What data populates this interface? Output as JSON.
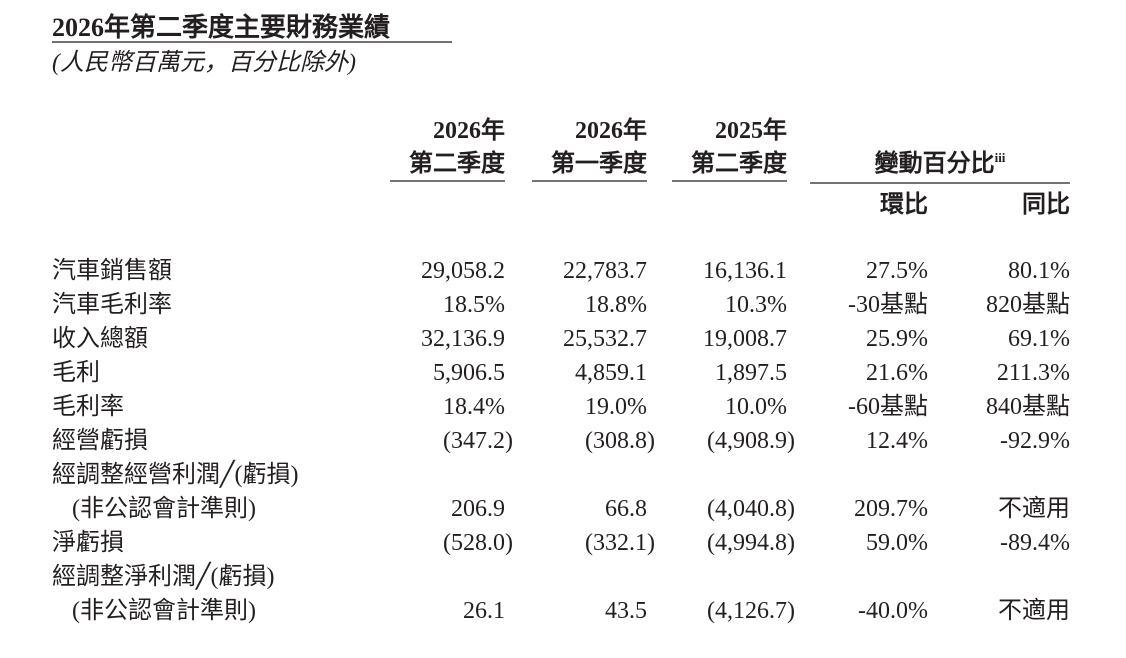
{
  "header": {
    "title": "2026年第二季度主要財務業績",
    "subtitle": "(人民幣百萬元，百分比除外)"
  },
  "table": {
    "columns": [
      [
        "2026年",
        "第二季度"
      ],
      [
        "2026年",
        "第一季度"
      ],
      [
        "2025年",
        "第二季度"
      ]
    ],
    "change_header": {
      "title": "變動百分比",
      "superscript": "iii",
      "subcolumns": [
        "環比",
        "同比"
      ]
    },
    "rows": [
      {
        "label": [
          "汽車銷售額"
        ],
        "cells": [
          "29,058.2",
          "22,783.7",
          "16,136.1",
          "27.5%",
          "80.1%"
        ]
      },
      {
        "label": [
          "汽車毛利率"
        ],
        "cells": [
          "18.5%",
          "18.8%",
          "10.3%",
          "-30基點",
          "820基點"
        ]
      },
      {
        "label": [
          "收入總額"
        ],
        "cells": [
          "32,136.9",
          "25,532.7",
          "19,008.7",
          "25.9%",
          "69.1%"
        ]
      },
      {
        "label": [
          "毛利"
        ],
        "cells": [
          "5,906.5",
          "4,859.1",
          "1,897.5",
          "21.6%",
          "211.3%"
        ]
      },
      {
        "label": [
          "毛利率"
        ],
        "cells": [
          "18.4%",
          "19.0%",
          "10.0%",
          "-60基點",
          "840基點"
        ]
      },
      {
        "label": [
          "經營虧損"
        ],
        "cells": [
          "(347.2)",
          "(308.8)",
          "(4,908.9)",
          "12.4%",
          "-92.9%"
        ]
      },
      {
        "label": [
          "經調整經營利潤╱(虧損)",
          "(非公認會計準則)"
        ],
        "cells": [
          "206.9",
          "66.8",
          "(4,040.8)",
          "209.7%",
          "不適用"
        ]
      },
      {
        "label": [
          "淨虧損"
        ],
        "cells": [
          "(528.0)",
          "(332.1)",
          "(4,994.8)",
          "59.0%",
          "-89.4%"
        ]
      },
      {
        "label": [
          "經調整淨利潤╱(虧損)",
          "(非公認會計準則)"
        ],
        "cells": [
          "26.1",
          "43.5",
          "(4,126.7)",
          "-40.0%",
          "不適用"
        ]
      }
    ]
  }
}
